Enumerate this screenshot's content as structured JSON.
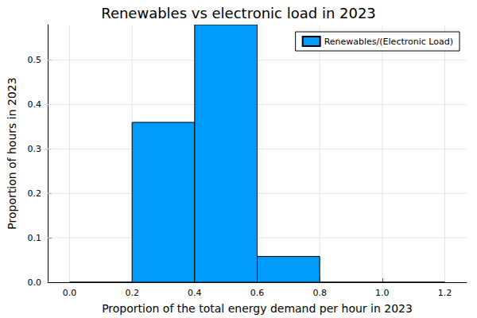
{
  "chart_data": {
    "type": "histogram",
    "title": "Renewables vs electronic load in 2023",
    "x_label": "Proportion of the total energy demand per hour in 2023",
    "y_label": "Proportion of hours in 2023",
    "bins": [
      0.0,
      0.2,
      0.4,
      0.6,
      0.8,
      1.0,
      1.2
    ],
    "series": [
      {
        "name": "Renewables/(Electronic Load)",
        "color": "#009afa",
        "values": [
          0,
          0.36,
          0.58,
          0.058,
          0,
          0
        ]
      }
    ],
    "xlim": [
      -0.07,
      1.27
    ],
    "xticks": [
      {
        "value": 0,
        "label": "0.0"
      },
      0.2,
      0.4,
      0.6,
      0.8,
      {
        "value": 1,
        "label": "1.0"
      },
      1.2
    ],
    "ylim": [
      0,
      0.58
    ],
    "yticks": [
      {
        "value": 0,
        "label": "0.0"
      },
      0.1,
      0.2,
      0.3,
      0.4,
      0.5
    ],
    "grid": true,
    "legend": "top-right"
  }
}
